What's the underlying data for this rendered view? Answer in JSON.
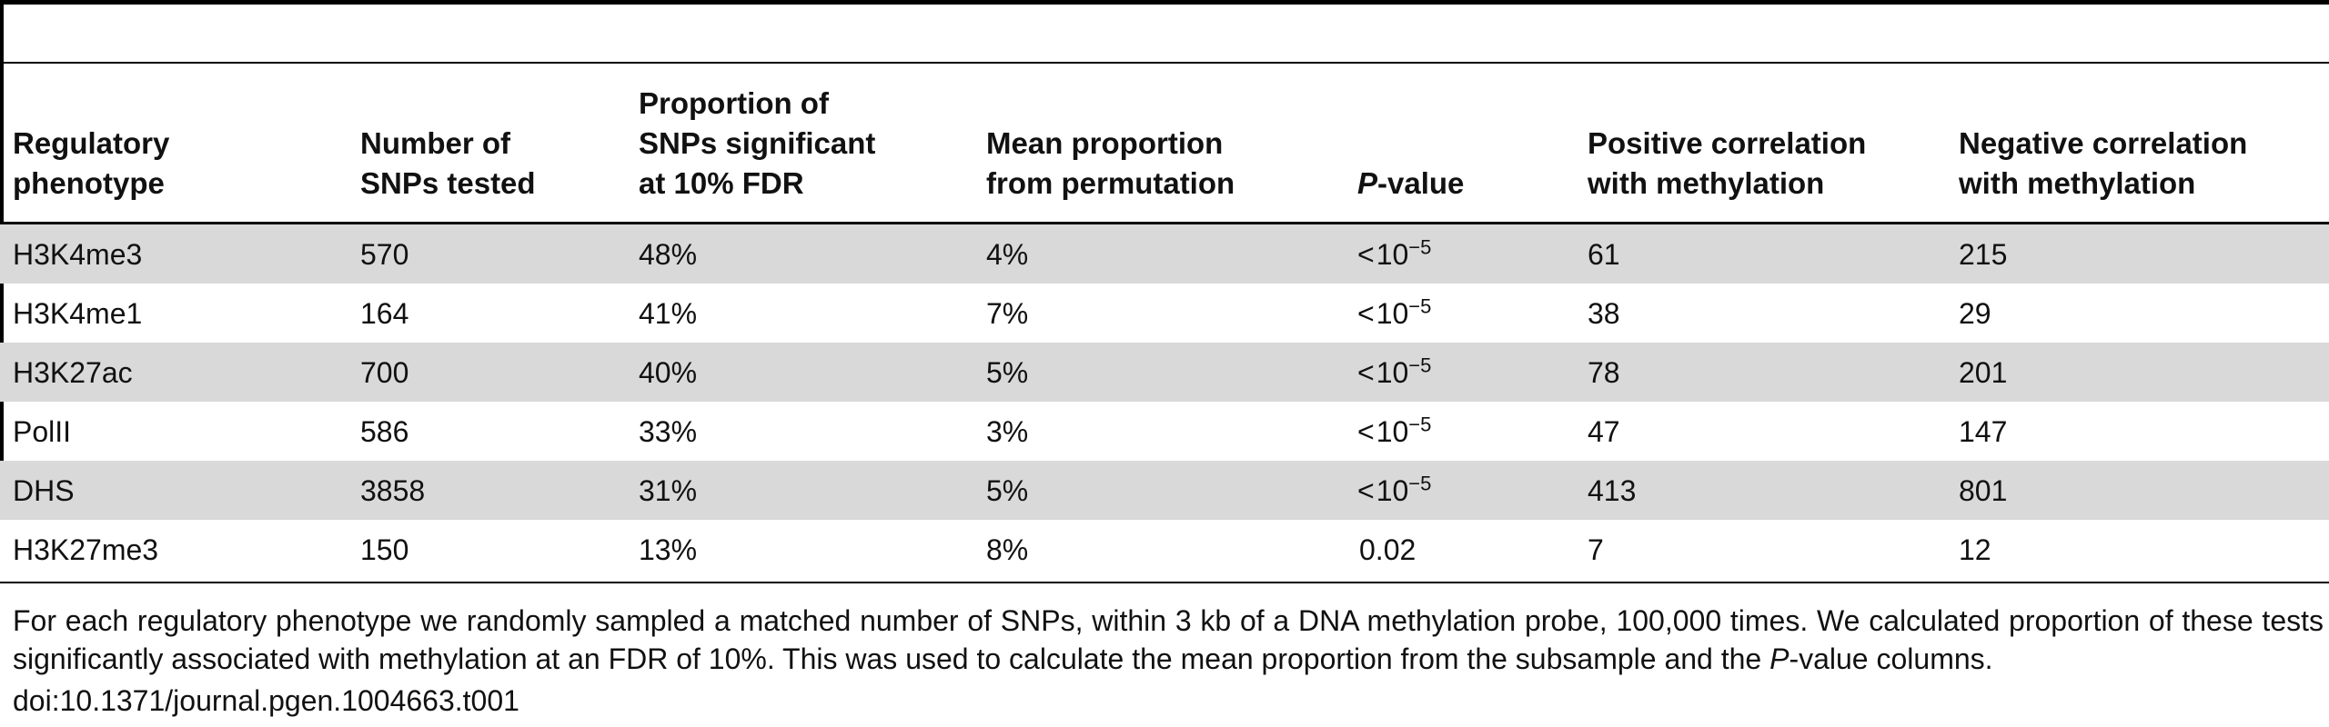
{
  "table": {
    "headers": [
      "Regulatory\nphenotype",
      "Number of\nSNPs tested",
      "Proportion of\nSNPs significant\nat 10% FDR",
      "Mean proportion\nfrom permutation",
      "P-value",
      "Positive correlation\nwith methylation",
      "Negative correlation\nwith methylation"
    ],
    "header_pvalue_italic": "P",
    "header_pvalue_rest": "-value",
    "rows": [
      {
        "phenotype": "H3K4me3",
        "snps": "570",
        "proportion": "48%",
        "mean": "4%",
        "pvalue_lt": "<",
        "pvalue_base": "10",
        "pvalue_exp": "−5",
        "positive": "61",
        "negative": "215"
      },
      {
        "phenotype": "H3K4me1",
        "snps": "164",
        "proportion": "41%",
        "mean": "7%",
        "pvalue_lt": "<",
        "pvalue_base": "10",
        "pvalue_exp": "−5",
        "positive": "38",
        "negative": "29"
      },
      {
        "phenotype": "H3K27ac",
        "snps": "700",
        "proportion": "40%",
        "mean": "5%",
        "pvalue_lt": "<",
        "pvalue_base": "10",
        "pvalue_exp": "−5",
        "positive": "78",
        "negative": "201"
      },
      {
        "phenotype": "PolII",
        "snps": "586",
        "proportion": "33%",
        "mean": "3%",
        "pvalue_lt": "<",
        "pvalue_base": "10",
        "pvalue_exp": "−5",
        "positive": "47",
        "negative": "147"
      },
      {
        "phenotype": "DHS",
        "snps": "3858",
        "proportion": "31%",
        "mean": "5%",
        "pvalue_lt": "<",
        "pvalue_base": "10",
        "pvalue_exp": "−5",
        "positive": "413",
        "negative": "801"
      },
      {
        "phenotype": "H3K27me3",
        "snps": "150",
        "proportion": "13%",
        "mean": "8%",
        "pvalue_lt": "",
        "pvalue_base": "0.02",
        "pvalue_exp": "",
        "positive": "7",
        "negative": "12"
      }
    ]
  },
  "footnote": {
    "before_italic": "For each regulatory phenotype we randomly sampled a matched number of SNPs, within 3 kb of a DNA methylation probe, 100,000 times. We calculated proportion of these tests significantly associated with methylation at an FDR of 10%. This was used to calculate the mean proportion from the subsample and the ",
    "italic": "P",
    "after_italic": "-value columns."
  },
  "doi": "doi:10.1371/journal.pgen.1004663.t001"
}
